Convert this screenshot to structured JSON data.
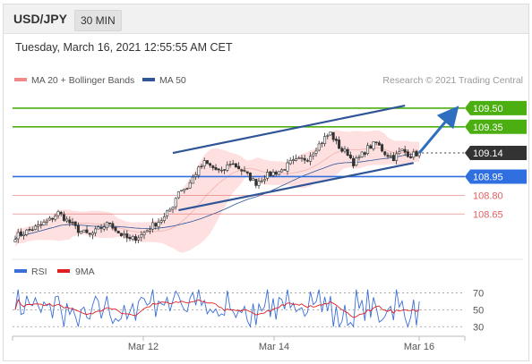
{
  "header": {
    "symbol": "USD/JPY",
    "timeframe": "30 MIN"
  },
  "datetime": "Tuesday, March 16, 2021 12:55:55 AM CET",
  "legend": [
    {
      "label": "MA 20 + Bollinger Bands",
      "color": "#f08a8a"
    },
    {
      "label": "MA 50",
      "color": "#2f5597"
    }
  ],
  "credit": "Research © 2021 Trading Central",
  "colors": {
    "resistance": "#4caf11",
    "support_main": "#2f6fe0",
    "support_minor": "#e06060",
    "current": "#333333",
    "candle_up": "#ffffff",
    "candle_down": "#333333",
    "trend": "#2f5597",
    "arrow": "#2f6fbf",
    "bollinger_fill": "#fde0df"
  },
  "chart_data": [
    {
      "type": "candlestick",
      "x_labels": [
        "Mar 12",
        "Mar 14",
        "Mar 16"
      ],
      "ylim": [
        108.3,
        109.65
      ],
      "levels": [
        {
          "value": 109.5,
          "label": "109.50",
          "kind": "resistance"
        },
        {
          "value": 109.35,
          "label": "109.35",
          "kind": "resistance"
        },
        {
          "value": 109.14,
          "label": "109.14",
          "kind": "current"
        },
        {
          "value": 108.95,
          "label": "108.95",
          "kind": "support_main"
        },
        {
          "value": 108.8,
          "label": "108.80",
          "kind": "support_minor"
        },
        {
          "value": 108.65,
          "label": "108.65",
          "kind": "support_minor"
        }
      ],
      "close_path": [
        [
          0,
          108.47
        ],
        [
          8,
          108.55
        ],
        [
          12,
          108.6
        ],
        [
          15,
          108.66
        ],
        [
          18,
          108.6
        ],
        [
          22,
          108.52
        ],
        [
          26,
          108.48
        ],
        [
          30,
          108.54
        ],
        [
          33,
          108.58
        ],
        [
          36,
          108.5
        ],
        [
          40,
          108.44
        ],
        [
          44,
          108.48
        ],
        [
          48,
          108.56
        ],
        [
          52,
          108.62
        ],
        [
          55,
          108.72
        ],
        [
          57,
          108.84
        ],
        [
          60,
          108.86
        ],
        [
          63,
          108.98
        ],
        [
          66,
          109.06
        ],
        [
          69,
          109.02
        ],
        [
          72,
          108.98
        ],
        [
          75,
          109.06
        ],
        [
          78,
          109.02
        ],
        [
          81,
          108.96
        ],
        [
          84,
          108.9
        ],
        [
          87,
          108.95
        ],
        [
          90,
          108.98
        ],
        [
          93,
          109.0
        ],
        [
          96,
          109.06
        ],
        [
          99,
          109.08
        ],
        [
          102,
          109.1
        ],
        [
          105,
          109.18
        ],
        [
          108,
          109.26
        ],
        [
          110,
          109.3
        ],
        [
          112,
          109.22
        ],
        [
          114,
          109.16
        ],
        [
          116,
          109.14
        ],
        [
          118,
          109.06
        ],
        [
          120,
          109.1
        ],
        [
          123,
          109.18
        ],
        [
          126,
          109.22
        ],
        [
          129,
          109.14
        ],
        [
          132,
          109.1
        ],
        [
          135,
          109.16
        ],
        [
          138,
          109.12
        ],
        [
          141,
          109.14
        ]
      ],
      "trendlines": [
        {
          "from": [
            55,
            109.14
          ],
          "to": [
            136,
            109.52
          ]
        },
        {
          "from": [
            57,
            108.68
          ],
          "to": [
            139,
            109.06
          ]
        }
      ],
      "projection": {
        "from": [
          141,
          109.14
        ],
        "to": [
          153,
          109.47
        ]
      }
    },
    {
      "type": "line",
      "title": "RSI",
      "series": [
        {
          "name": "RSI",
          "color": "#3a6fd8"
        },
        {
          "name": "9MA",
          "color": "#e02020"
        }
      ],
      "ylim": [
        25,
        80
      ],
      "ticks": [
        {
          "value": 70,
          "label": "70"
        },
        {
          "value": 50,
          "label": "50"
        },
        {
          "value": 30,
          "label": "30"
        }
      ]
    }
  ]
}
